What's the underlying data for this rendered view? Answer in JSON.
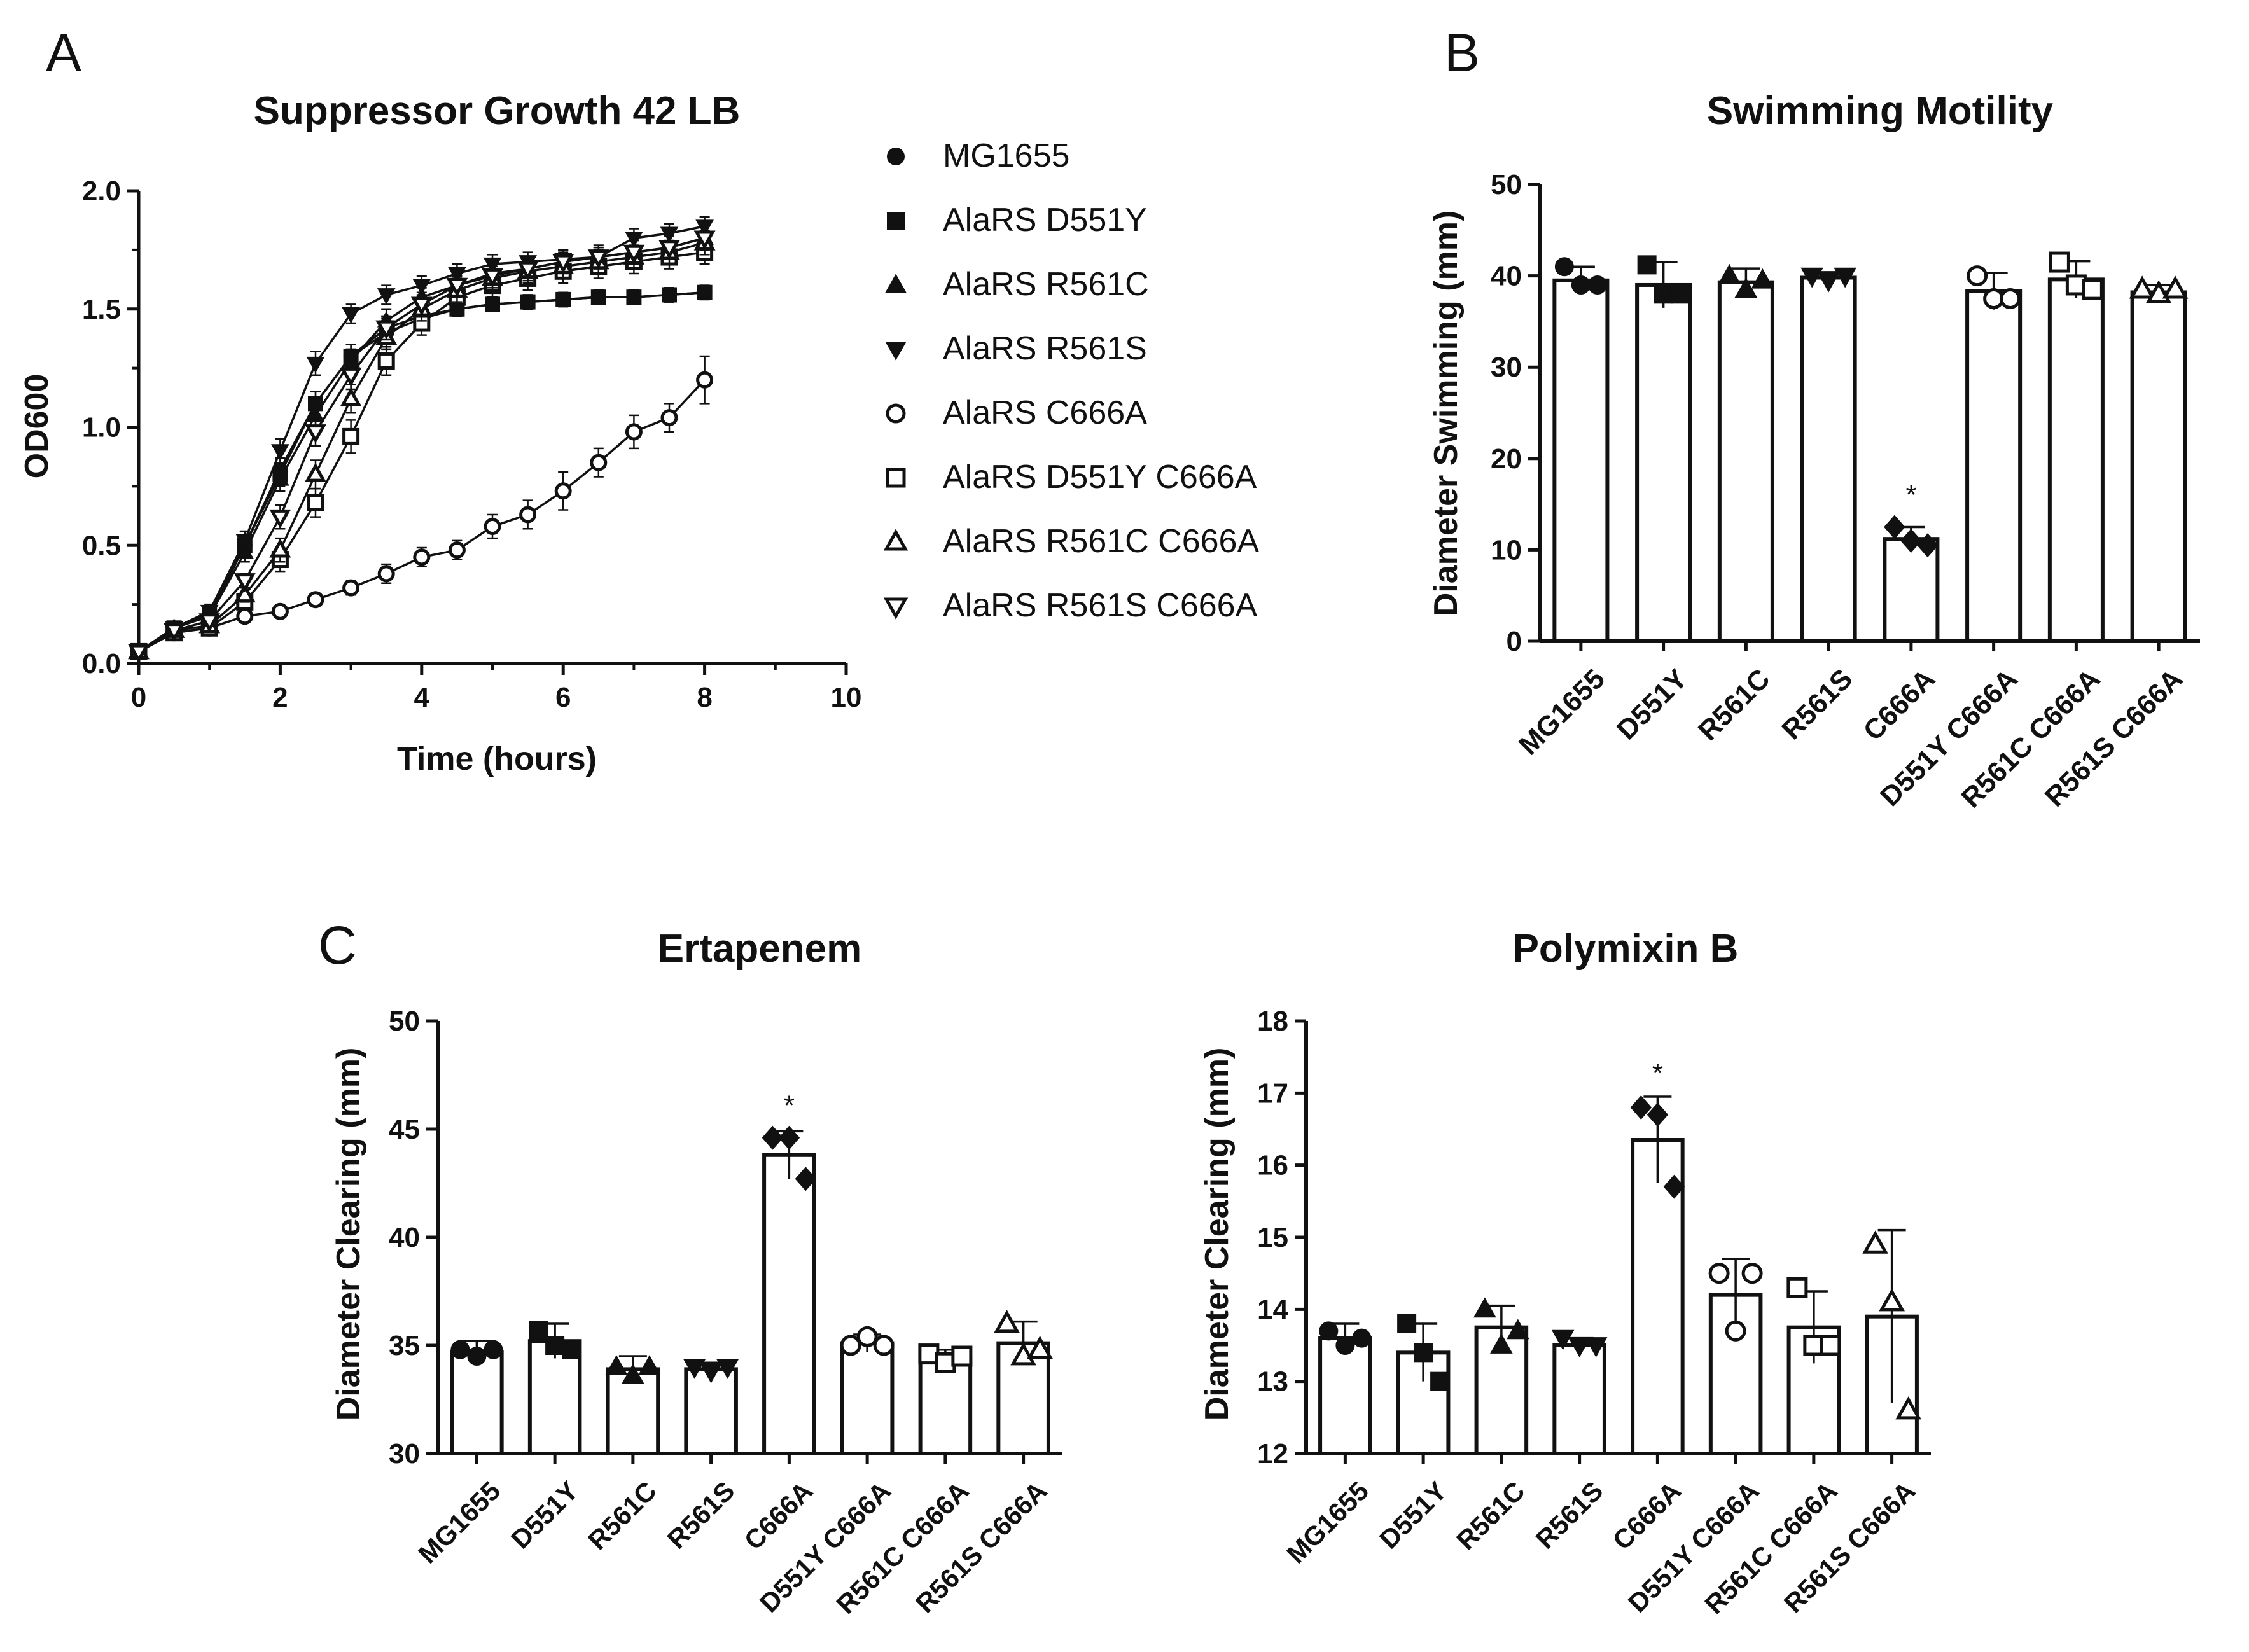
{
  "panels": [
    "A",
    "B",
    "C"
  ],
  "chart_data": [
    {
      "type": "line",
      "title": "Suppressor Growth 42 LB",
      "xlabel": "Time (hours)",
      "ylabel": "OD600",
      "xlim": [
        0,
        10
      ],
      "ylim": [
        0,
        2.0
      ],
      "xticks": [
        "0",
        "2",
        "4",
        "6",
        "8",
        "10"
      ],
      "yticks": [
        "0.0",
        "0.5",
        "1.0",
        "1.5",
        "2.0"
      ],
      "x": [
        0,
        0.5,
        1,
        1.5,
        2,
        2.5,
        3,
        3.5,
        4,
        4.5,
        5,
        5.5,
        6,
        6.5,
        7,
        7.5,
        8
      ],
      "legend_position": "right",
      "series": [
        {
          "name": "MG1655",
          "marker": "filled-circle",
          "values": [
            0.05,
            0.15,
            0.2,
            0.5,
            0.82,
            1.1,
            1.3,
            1.4,
            1.46,
            1.5,
            1.52,
            1.53,
            1.54,
            1.55,
            1.55,
            1.56,
            1.57
          ],
          "err": [
            0.02,
            0.02,
            0.03,
            0.04,
            0.05,
            0.05,
            0.05,
            0.04,
            0.03,
            0.03,
            0.03,
            0.03,
            0.03,
            0.03,
            0.03,
            0.03,
            0.03
          ]
        },
        {
          "name": "AlaRS D551Y",
          "marker": "filled-square",
          "values": [
            0.05,
            0.15,
            0.21,
            0.5,
            0.8,
            1.1,
            1.3,
            1.42,
            1.47,
            1.5,
            1.52,
            1.53,
            1.54,
            1.55,
            1.55,
            1.56,
            1.57
          ],
          "err": [
            0.02,
            0.02,
            0.03,
            0.04,
            0.05,
            0.05,
            0.05,
            0.04,
            0.03,
            0.03,
            0.03,
            0.03,
            0.03,
            0.03,
            0.03,
            0.03,
            0.03
          ]
        },
        {
          "name": "AlaRS R561C",
          "marker": "filled-triangle-up",
          "values": [
            0.05,
            0.15,
            0.2,
            0.47,
            0.78,
            1.05,
            1.28,
            1.45,
            1.55,
            1.6,
            1.65,
            1.67,
            1.7,
            1.72,
            1.74,
            1.76,
            1.8
          ],
          "err": [
            0.02,
            0.02,
            0.03,
            0.04,
            0.05,
            0.05,
            0.05,
            0.05,
            0.04,
            0.04,
            0.04,
            0.04,
            0.04,
            0.04,
            0.05,
            0.05,
            0.05
          ]
        },
        {
          "name": "AlaRS R561S",
          "marker": "filled-triangle-down",
          "values": [
            0.05,
            0.15,
            0.22,
            0.52,
            0.9,
            1.27,
            1.48,
            1.56,
            1.6,
            1.65,
            1.69,
            1.7,
            1.71,
            1.72,
            1.8,
            1.82,
            1.85
          ],
          "err": [
            0.02,
            0.02,
            0.03,
            0.04,
            0.05,
            0.05,
            0.04,
            0.04,
            0.04,
            0.04,
            0.04,
            0.04,
            0.04,
            0.04,
            0.04,
            0.04,
            0.04
          ]
        },
        {
          "name": "AlaRS C666A",
          "marker": "open-circle",
          "values": [
            0.05,
            0.13,
            0.15,
            0.2,
            0.22,
            0.27,
            0.32,
            0.38,
            0.45,
            0.48,
            0.58,
            0.63,
            0.73,
            0.85,
            0.98,
            1.04,
            1.2
          ],
          "err": [
            0.02,
            0.02,
            0.02,
            0.02,
            0.02,
            0.02,
            0.03,
            0.04,
            0.04,
            0.04,
            0.05,
            0.06,
            0.08,
            0.06,
            0.07,
            0.06,
            0.1
          ]
        },
        {
          "name": "AlaRS D551Y C666A",
          "marker": "open-square",
          "values": [
            0.05,
            0.13,
            0.15,
            0.26,
            0.44,
            0.68,
            0.96,
            1.28,
            1.44,
            1.55,
            1.6,
            1.63,
            1.66,
            1.68,
            1.7,
            1.72,
            1.74
          ],
          "err": [
            0.02,
            0.02,
            0.02,
            0.03,
            0.05,
            0.06,
            0.07,
            0.06,
            0.05,
            0.05,
            0.05,
            0.05,
            0.05,
            0.05,
            0.05,
            0.05,
            0.05
          ]
        },
        {
          "name": "AlaRS R561C C666A",
          "marker": "open-triangle-up",
          "values": [
            0.05,
            0.14,
            0.16,
            0.29,
            0.48,
            0.8,
            1.12,
            1.38,
            1.5,
            1.58,
            1.63,
            1.66,
            1.68,
            1.7,
            1.72,
            1.74,
            1.78
          ],
          "err": [
            0.02,
            0.02,
            0.02,
            0.03,
            0.05,
            0.06,
            0.06,
            0.05,
            0.05,
            0.05,
            0.05,
            0.05,
            0.05,
            0.05,
            0.05,
            0.05,
            0.05
          ]
        },
        {
          "name": "AlaRS R561S C666A",
          "marker": "open-triangle-down",
          "values": [
            0.05,
            0.14,
            0.18,
            0.35,
            0.62,
            0.98,
            1.22,
            1.42,
            1.52,
            1.6,
            1.64,
            1.67,
            1.7,
            1.72,
            1.74,
            1.76,
            1.8
          ],
          "err": [
            0.02,
            0.02,
            0.02,
            0.03,
            0.05,
            0.06,
            0.06,
            0.05,
            0.05,
            0.05,
            0.05,
            0.05,
            0.05,
            0.05,
            0.05,
            0.05,
            0.05
          ]
        }
      ]
    },
    {
      "type": "bar",
      "title": "Swimming Motility",
      "ylabel": "Diameter Swimming (mm)",
      "ylim": [
        0,
        50
      ],
      "yticks": [
        "0",
        "10",
        "20",
        "30",
        "40",
        "50"
      ],
      "categories": [
        "MG1655",
        "D551Y",
        "R561C",
        "R561S",
        "C666A",
        "D551Y C666A",
        "R561C C666A",
        "R561S C666A"
      ],
      "values": [
        39.5,
        39.0,
        39.3,
        39.8,
        11.2,
        38.3,
        39.6,
        38.2
      ],
      "err": [
        1.5,
        2.5,
        1.5,
        0.6,
        1.3,
        2.0,
        2.0,
        0.8
      ],
      "points": [
        [
          41,
          39,
          39
        ],
        [
          41.2,
          38,
          38
        ],
        [
          40,
          38.5,
          39.5
        ],
        [
          40,
          39.5,
          40
        ],
        [
          12.5,
          11,
          10.5
        ],
        [
          40,
          37.5,
          37.5
        ],
        [
          41.5,
          39,
          38.5
        ],
        [
          38.5,
          38,
          38.5
        ]
      ],
      "markers": [
        "filled-circle",
        "filled-square",
        "filled-triangle-up",
        "filled-triangle-down",
        "filled-diamond",
        "open-circle",
        "open-square",
        "open-triangle-up"
      ],
      "annotations": [
        {
          "category": "C666A",
          "text": "*"
        }
      ]
    },
    {
      "type": "bar",
      "title": "Ertapenem",
      "ylabel": "Diameter Clearing (mm)",
      "ylim": [
        30,
        50
      ],
      "yticks": [
        "30",
        "35",
        "40",
        "45",
        "50"
      ],
      "categories": [
        "MG1655",
        "D551Y",
        "R561C",
        "R561S",
        "C666A",
        "D551Y C666A",
        "R561C C666A",
        "R561S C666A"
      ],
      "values": [
        34.7,
        35.2,
        33.9,
        33.9,
        43.8,
        35.1,
        34.4,
        35.1
      ],
      "err": [
        0.5,
        0.8,
        0.6,
        0.3,
        1.1,
        0.4,
        0.4,
        1.0
      ],
      "points": [
        [
          34.8,
          34.5,
          34.8
        ],
        [
          35.7,
          35.0,
          34.8
        ],
        [
          34.0,
          33.6,
          34.0
        ],
        [
          34.0,
          33.8,
          34.0
        ],
        [
          44.6,
          44.6,
          42.7
        ],
        [
          35.0,
          35.4,
          35.0
        ],
        [
          34.6,
          34.2,
          34.5
        ],
        [
          36.0,
          34.5,
          34.8
        ]
      ],
      "markers": [
        "filled-circle",
        "filled-square",
        "filled-triangle-up",
        "filled-triangle-down",
        "filled-diamond",
        "open-circle",
        "open-square",
        "open-triangle-up"
      ],
      "annotations": [
        {
          "category": "C666A",
          "text": "*"
        }
      ]
    },
    {
      "type": "bar",
      "title": "Polymixin B",
      "ylabel": "Diameter Clearing (mm)",
      "ylim": [
        12,
        18
      ],
      "yticks": [
        "12",
        "13",
        "14",
        "15",
        "16",
        "17",
        "18"
      ],
      "categories": [
        "MG1655",
        "D551Y",
        "R561C",
        "R561S",
        "C666A",
        "D551Y C666A",
        "R561C C666A",
        "R561S C666A"
      ],
      "values": [
        13.6,
        13.4,
        13.75,
        13.5,
        16.35,
        14.2,
        13.75,
        13.9
      ],
      "err": [
        0.2,
        0.4,
        0.3,
        0.1,
        0.6,
        0.5,
        0.5,
        1.2
      ],
      "points": [
        [
          13.7,
          13.5,
          13.6
        ],
        [
          13.8,
          13.4,
          13.0
        ],
        [
          14.0,
          13.5,
          13.7
        ],
        [
          13.6,
          13.5,
          13.5
        ],
        [
          16.8,
          16.7,
          15.7
        ],
        [
          14.5,
          13.7,
          14.5
        ],
        [
          14.3,
          13.5,
          13.5
        ],
        [
          14.9,
          14.1,
          12.6
        ]
      ],
      "markers": [
        "filled-circle",
        "filled-square",
        "filled-triangle-up",
        "filled-triangle-down",
        "filled-diamond",
        "open-circle",
        "open-square",
        "open-triangle-up"
      ],
      "annotations": [
        {
          "category": "C666A",
          "text": "*"
        }
      ]
    }
  ]
}
